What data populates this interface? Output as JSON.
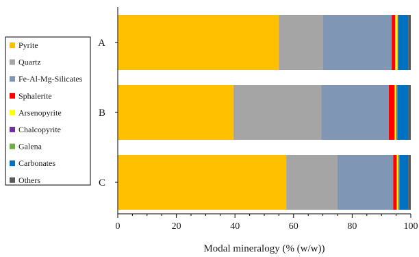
{
  "chart_data": {
    "type": "bar",
    "orientation": "horizontal",
    "stacked": true,
    "categories": [
      "A",
      "B",
      "C"
    ],
    "series": [
      {
        "name": "Pyrite",
        "color": "#FFC000",
        "values": [
          55.0,
          39.5,
          57.5
        ]
      },
      {
        "name": "Quartz",
        "color": "#A5A5A5",
        "values": [
          15.0,
          30.0,
          17.5
        ]
      },
      {
        "name": "Fe-Al-Mg-Silicates",
        "color": "#7F96B5",
        "values": [
          23.5,
          23.0,
          19.0
        ]
      },
      {
        "name": "Sphalerite",
        "color": "#FF0000",
        "values": [
          1.2,
          2.0,
          1.2
        ]
      },
      {
        "name": "Arsenopyrite",
        "color": "#FFFF00",
        "values": [
          0.8,
          0.6,
          0.6
        ]
      },
      {
        "name": "Chalcopyrite",
        "color": "#7030A0",
        "values": [
          0.2,
          0.2,
          0.2
        ]
      },
      {
        "name": "Galena",
        "color": "#70AD47",
        "values": [
          0.1,
          0.1,
          0.1
        ]
      },
      {
        "name": "Carbonates",
        "color": "#0070C0",
        "values": [
          3.3,
          3.8,
          3.0
        ]
      },
      {
        "name": "Others",
        "color": "#595959",
        "values": [
          0.9,
          0.8,
          0.9
        ]
      }
    ],
    "title": "",
    "xlabel": "Modal mineralogy (% (w/w))",
    "ylabel": "",
    "xlim": [
      0,
      100
    ],
    "xticks": [
      0,
      20,
      40,
      60,
      80,
      100
    ],
    "grid": false,
    "legend_placement": "left"
  }
}
